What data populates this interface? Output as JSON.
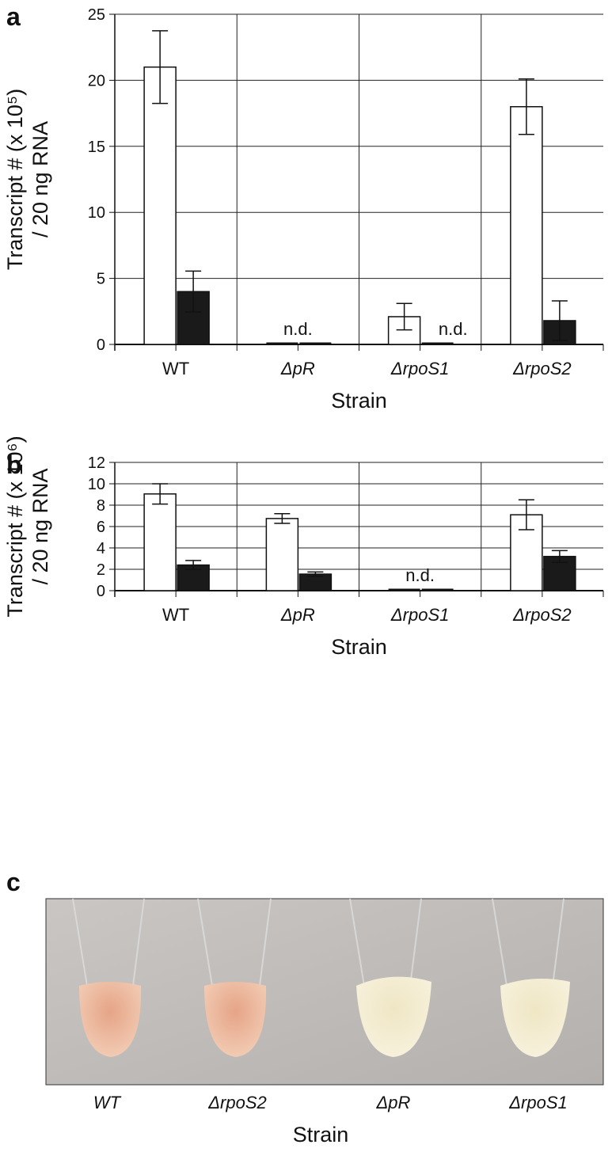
{
  "chart_data": [
    {
      "type": "bar",
      "panel": "a",
      "ylabel": [
        "Transcript # (x 10⁵)",
        "/ 20 ng RNA"
      ],
      "xlabel": "Strain",
      "categories": [
        "WT",
        "ΔpR",
        "ΔrpoS1",
        "ΔrpoS2"
      ],
      "series": [
        {
          "color": "#ffffff",
          "values": [
            21,
            null,
            2.1,
            18
          ],
          "errors": [
            2.75,
            null,
            1.0,
            2.1
          ]
        },
        {
          "color": "#1a1a1a",
          "values": [
            4.0,
            null,
            null,
            1.8
          ],
          "errors": [
            1.55,
            null,
            null,
            1.5
          ]
        }
      ],
      "annotations": [
        {
          "text": "n.d.",
          "at": 1
        },
        {
          "text": "n.d.",
          "at": 2.27
        }
      ],
      "ylim": [
        0,
        25
      ],
      "yticks": [
        0,
        5,
        10,
        15,
        20,
        25
      ],
      "grid": true
    },
    {
      "type": "bar",
      "panel": "b",
      "ylabel": [
        "Transcript # (x 10⁶)",
        "/ 20 ng RNA"
      ],
      "xlabel": "Strain",
      "categories": [
        "WT",
        "ΔpR",
        "ΔrpoS1",
        "ΔrpoS2"
      ],
      "series": [
        {
          "color": "#ffffff",
          "values": [
            9.05,
            6.75,
            null,
            7.1
          ],
          "errors": [
            0.95,
            0.45,
            null,
            1.4
          ]
        },
        {
          "color": "#1a1a1a",
          "values": [
            2.4,
            1.55,
            null,
            3.2
          ],
          "errors": [
            0.42,
            0.2,
            null,
            0.55
          ]
        }
      ],
      "annotations": [
        {
          "text": "n.d.",
          "at": 2
        }
      ],
      "ylim": [
        0,
        12
      ],
      "yticks": [
        0,
        2,
        4,
        6,
        8,
        10,
        12
      ],
      "grid": true
    }
  ],
  "photo": {
    "panel": "c",
    "labels": [
      "WT",
      "ΔrpoS2",
      "ΔpR",
      "ΔrpoS1"
    ],
    "xlabel": "Strain"
  }
}
